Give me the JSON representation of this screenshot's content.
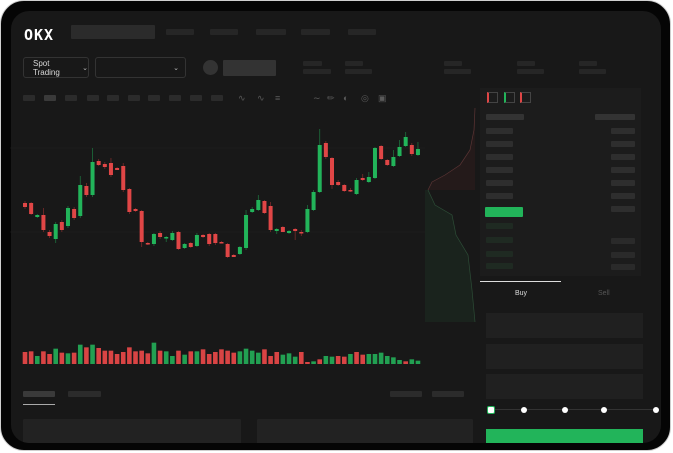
{
  "header": {
    "logo": "OKX"
  },
  "market_bar": {
    "mode_button": "Spot Trading",
    "pair_selector": ""
  },
  "trade_panel": {
    "tabs": [
      "Buy",
      "Sell"
    ],
    "active_tab": "Buy"
  },
  "colors": {
    "up": "#22b45a",
    "down": "#e04646",
    "background": "#181818",
    "accent": "#22b45a"
  },
  "icons": [
    "okx-logo",
    "chevron-down-icon",
    "line-tool-icon",
    "pencil-icon",
    "gauge-icon",
    "target-icon",
    "fullscreen-icon",
    "orderbook-both-icon",
    "orderbook-bids-icon",
    "orderbook-asks-icon"
  ],
  "order_slider": {
    "value": 0,
    "steps": 5
  },
  "chart_data": {
    "type": "candlestick",
    "title": "",
    "grid": true,
    "ohlc": [
      [
        97,
        99,
        91,
        93
      ],
      [
        97,
        98,
        85,
        86
      ],
      [
        83,
        86,
        82,
        85
      ],
      [
        85,
        92,
        68,
        70
      ],
      [
        68,
        70,
        62,
        64
      ],
      [
        61,
        78,
        57,
        76
      ],
      [
        78,
        80,
        68,
        70
      ],
      [
        74,
        94,
        72,
        92
      ],
      [
        91,
        93,
        80,
        82
      ],
      [
        84,
        124,
        82,
        115
      ],
      [
        114,
        117,
        103,
        105
      ],
      [
        105,
        152,
        103,
        138
      ],
      [
        139,
        141,
        134,
        135
      ],
      [
        136,
        138,
        131,
        133
      ],
      [
        137,
        142,
        123,
        125
      ],
      [
        132,
        133,
        130,
        130
      ],
      [
        134,
        137,
        108,
        110
      ],
      [
        111,
        112,
        86,
        88
      ],
      [
        91,
        92,
        88,
        89
      ],
      [
        89,
        90,
        53,
        58
      ],
      [
        57,
        58,
        55,
        56
      ],
      [
        56,
        67,
        54,
        66
      ],
      [
        67,
        69,
        61,
        63
      ],
      [
        62,
        64,
        58,
        63
      ],
      [
        60,
        69,
        59,
        67
      ],
      [
        68,
        69,
        50,
        51
      ],
      [
        52,
        57,
        51,
        56
      ],
      [
        57,
        58,
        52,
        53
      ],
      [
        54,
        67,
        53,
        65
      ],
      [
        65,
        66,
        62,
        63
      ],
      [
        66,
        67,
        54,
        56
      ],
      [
        66,
        67,
        55,
        57
      ],
      [
        58,
        59,
        57,
        57
      ],
      [
        56,
        57,
        42,
        43
      ],
      [
        45,
        46,
        43,
        43
      ],
      [
        46,
        54,
        45,
        53
      ],
      [
        52,
        90,
        50,
        85
      ],
      [
        88,
        93,
        87,
        91
      ],
      [
        90,
        105,
        89,
        100
      ],
      [
        99,
        100,
        86,
        87
      ],
      [
        94,
        98,
        68,
        70
      ],
      [
        69,
        72,
        66,
        71
      ],
      [
        73,
        74,
        68,
        68
      ],
      [
        67,
        70,
        66,
        69
      ],
      [
        71,
        72,
        60,
        69
      ],
      [
        68,
        70,
        64,
        67
      ],
      [
        68,
        95,
        67,
        91
      ],
      [
        90,
        110,
        89,
        108
      ],
      [
        108,
        171,
        107,
        155
      ],
      [
        157,
        159,
        141,
        143
      ],
      [
        142,
        143,
        111,
        115
      ],
      [
        118,
        120,
        114,
        115
      ],
      [
        115,
        116,
        108,
        109
      ],
      [
        110,
        112,
        108,
        109
      ],
      [
        106,
        122,
        105,
        120
      ],
      [
        122,
        126,
        119,
        120
      ],
      [
        118,
        128,
        117,
        123
      ],
      [
        122,
        153,
        121,
        152
      ],
      [
        154,
        155,
        140,
        141
      ],
      [
        140,
        141,
        134,
        135
      ],
      [
        134,
        150,
        133,
        143
      ],
      [
        144,
        160,
        143,
        153
      ],
      [
        154,
        168,
        153,
        163
      ],
      [
        155,
        157,
        144,
        146
      ],
      [
        145,
        158,
        144,
        151
      ]
    ],
    "volume": [
      [
        36,
        "down"
      ],
      [
        38,
        "down"
      ],
      [
        24,
        "up"
      ],
      [
        38,
        "down"
      ],
      [
        30,
        "down"
      ],
      [
        46,
        "up"
      ],
      [
        34,
        "down"
      ],
      [
        32,
        "up"
      ],
      [
        34,
        "down"
      ],
      [
        58,
        "up"
      ],
      [
        50,
        "down"
      ],
      [
        58,
        "up"
      ],
      [
        48,
        "down"
      ],
      [
        40,
        "down"
      ],
      [
        40,
        "down"
      ],
      [
        30,
        "down"
      ],
      [
        36,
        "down"
      ],
      [
        50,
        "down"
      ],
      [
        38,
        "down"
      ],
      [
        40,
        "down"
      ],
      [
        32,
        "down"
      ],
      [
        64,
        "up"
      ],
      [
        40,
        "down"
      ],
      [
        38,
        "up"
      ],
      [
        24,
        "up"
      ],
      [
        40,
        "down"
      ],
      [
        28,
        "up"
      ],
      [
        38,
        "down"
      ],
      [
        38,
        "up"
      ],
      [
        44,
        "down"
      ],
      [
        30,
        "down"
      ],
      [
        36,
        "down"
      ],
      [
        44,
        "down"
      ],
      [
        40,
        "down"
      ],
      [
        34,
        "down"
      ],
      [
        38,
        "up"
      ],
      [
        46,
        "up"
      ],
      [
        40,
        "up"
      ],
      [
        34,
        "up"
      ],
      [
        44,
        "down"
      ],
      [
        24,
        "down"
      ],
      [
        36,
        "down"
      ],
      [
        28,
        "up"
      ],
      [
        32,
        "up"
      ],
      [
        22,
        "up"
      ],
      [
        36,
        "down"
      ],
      [
        6,
        "down"
      ],
      [
        8,
        "up"
      ],
      [
        14,
        "down"
      ],
      [
        24,
        "up"
      ],
      [
        22,
        "up"
      ],
      [
        24,
        "down"
      ],
      [
        22,
        "down"
      ],
      [
        30,
        "up"
      ],
      [
        36,
        "down"
      ],
      [
        28,
        "down"
      ],
      [
        30,
        "up"
      ],
      [
        30,
        "up"
      ],
      [
        34,
        "up"
      ],
      [
        24,
        "up"
      ],
      [
        20,
        "up"
      ],
      [
        12,
        "up"
      ],
      [
        8,
        "down"
      ],
      [
        14,
        "up"
      ],
      [
        10,
        "up"
      ]
    ]
  }
}
